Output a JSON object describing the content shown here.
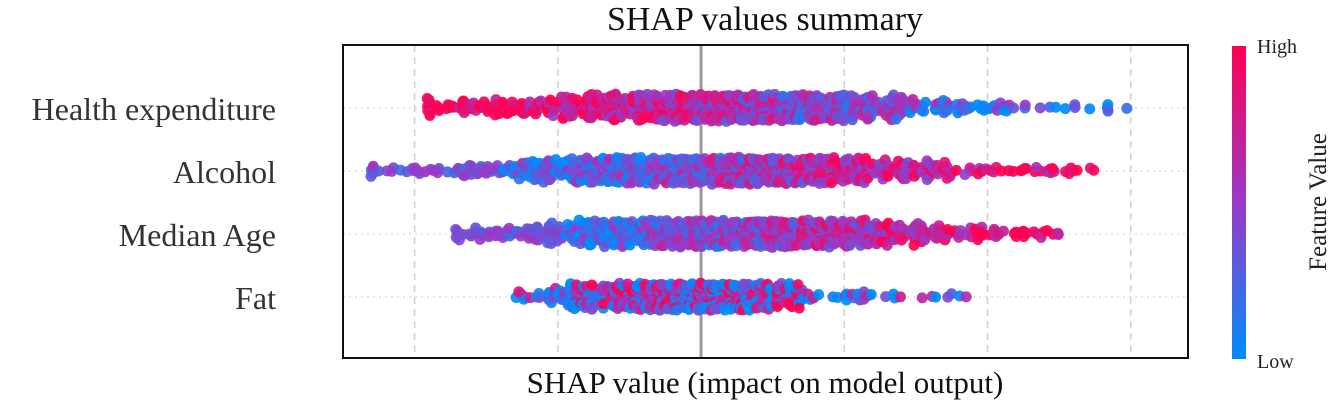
{
  "chart_data": {
    "type": "scatter",
    "subtype": "shap-beeswarm",
    "title": "SHAP values summary",
    "xlabel": "SHAP value (impact on model output)",
    "ylabel": "",
    "grid": true,
    "features": [
      "Health expenditure",
      "Alcohol",
      "Median Age",
      "Fat"
    ],
    "xlim": [
      -1.25,
      1.7
    ],
    "gridlines": [
      -1.0,
      -0.5,
      0.5,
      1.0,
      1.5
    ],
    "baseline": 0,
    "colorbar": {
      "label": "Feature Value",
      "high_label": "High",
      "low_label": "Low",
      "low_color": "#008bfb",
      "mid_color": "#9a39c7",
      "high_color": "#ff0052"
    },
    "series": [
      {
        "feature": "Health expenditure",
        "x_range": [
          -0.95,
          1.52
        ],
        "points": 900,
        "spread_sd": 0.42,
        "center": 0.05,
        "color_trend": "high values negative impact"
      },
      {
        "feature": "Alcohol",
        "x_range": [
          -1.15,
          1.4
        ],
        "points": 900,
        "spread_sd": 0.45,
        "center": 0.05,
        "color_trend": "high values positive impact"
      },
      {
        "feature": "Median Age",
        "x_range": [
          -0.85,
          1.25
        ],
        "points": 900,
        "spread_sd": 0.38,
        "center": 0.1,
        "color_trend": "high values positive impact"
      },
      {
        "feature": "Fat",
        "x_range": [
          -0.65,
          0.97
        ],
        "points": 700,
        "spread_sd": 0.22,
        "center": -0.05,
        "color_trend": "mixed"
      }
    ]
  }
}
